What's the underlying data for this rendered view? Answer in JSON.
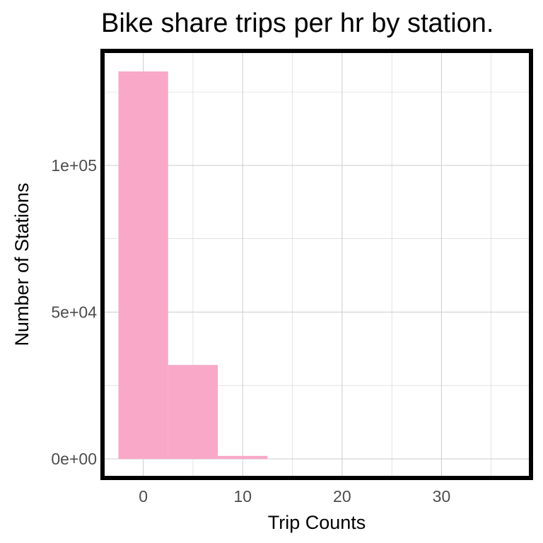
{
  "chart_data": {
    "type": "bar",
    "title": "Bike share trips per hr by station.",
    "xlabel": "Trip Counts",
    "ylabel": "Number of Stations",
    "bin_width": 5,
    "bins": [
      {
        "x_start": -2.5,
        "x_end": 2.5,
        "value": 132000
      },
      {
        "x_start": 2.5,
        "x_end": 7.5,
        "value": 32000
      },
      {
        "x_start": 7.5,
        "x_end": 12.5,
        "value": 1000
      }
    ],
    "xlim": [
      -4.1,
      39
    ],
    "ylim": [
      -6500,
      139000
    ],
    "x_ticks": [
      {
        "value": 0,
        "label": "0"
      },
      {
        "value": 10,
        "label": "10"
      },
      {
        "value": 20,
        "label": "20"
      },
      {
        "value": 30,
        "label": "30"
      }
    ],
    "y_ticks": [
      {
        "value": 0,
        "label": "0e+00"
      },
      {
        "value": 50000,
        "label": "5e+04"
      },
      {
        "value": 100000,
        "label": "1e+05"
      }
    ],
    "bar_color": "#F9A8C8",
    "grid": true,
    "grid_color": "#d0d0d0",
    "border_color": "#000000"
  }
}
